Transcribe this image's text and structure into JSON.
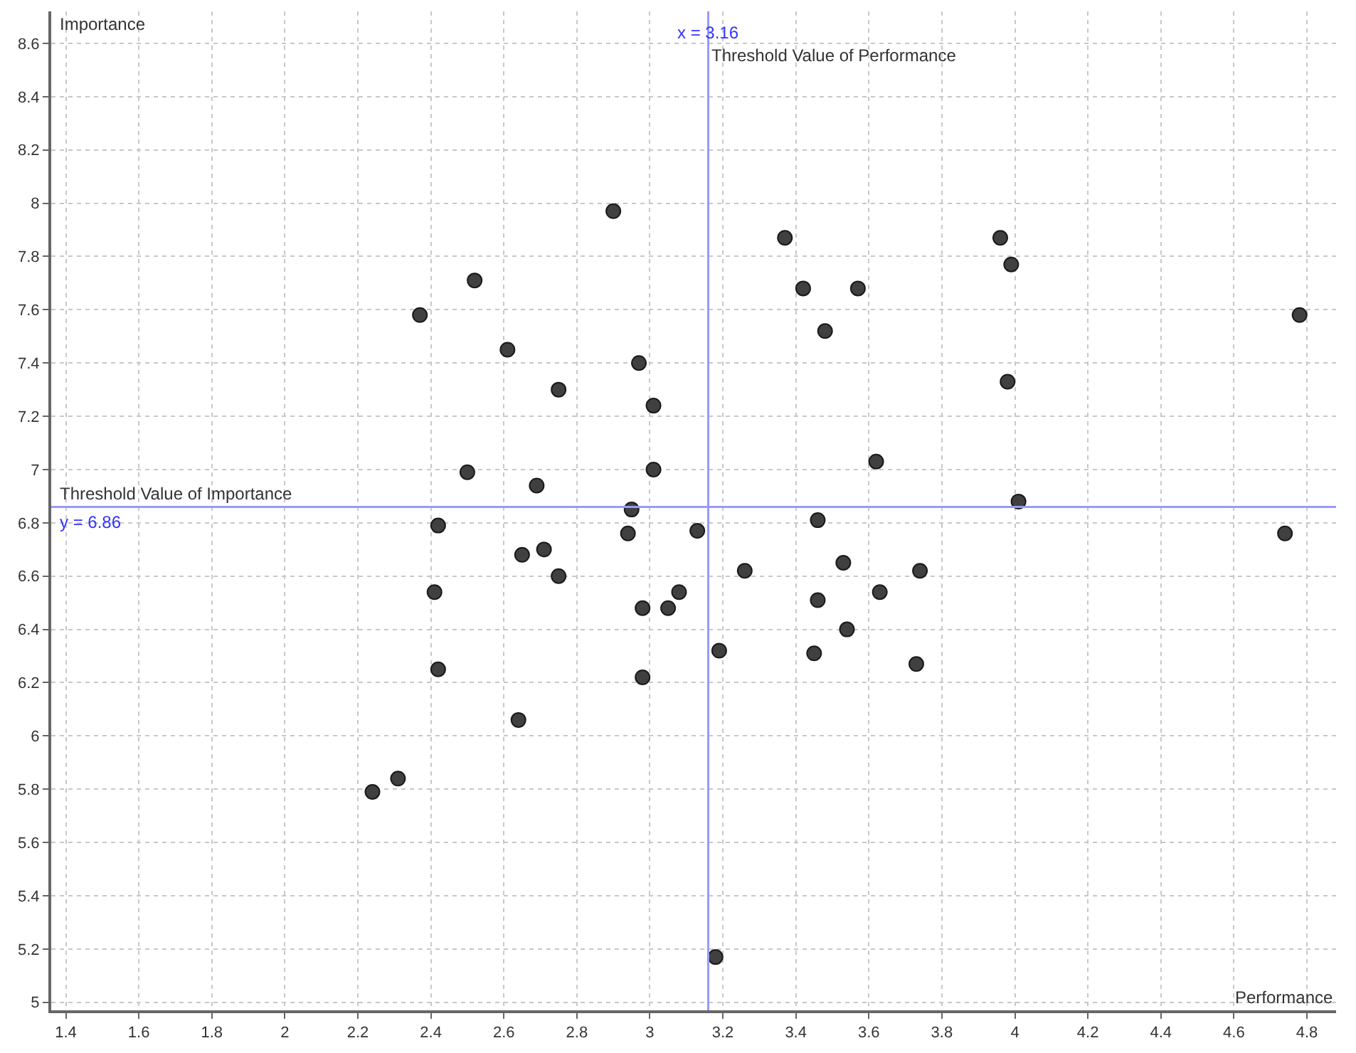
{
  "chart_data": {
    "type": "scatter",
    "xlabel": "Performance",
    "ylabel": "Importance",
    "x": [
      2.24,
      2.31,
      2.37,
      2.52,
      2.61,
      2.75,
      2.9,
      2.97,
      3.01,
      3.01,
      2.5,
      2.69,
      2.95,
      2.42,
      2.94,
      2.71,
      2.65,
      2.75,
      2.41,
      2.98,
      3.05,
      3.08,
      2.42,
      2.64,
      2.98,
      3.13,
      3.26,
      3.19,
      3.18,
      3.37,
      3.42,
      3.57,
      3.48,
      3.62,
      3.46,
      3.53,
      3.46,
      3.63,
      3.74,
      3.54,
      3.45,
      3.73,
      3.96,
      3.99,
      3.98,
      4.01,
      4.74,
      4.78
    ],
    "series": [
      {
        "color": "#404040",
        "values": [
          5.79,
          5.84,
          7.58,
          7.71,
          7.45,
          7.3,
          7.97,
          7.4,
          7.24,
          7.0,
          6.99,
          6.94,
          6.85,
          6.79,
          6.76,
          6.7,
          6.68,
          6.6,
          6.54,
          6.48,
          6.48,
          6.54,
          6.25,
          6.06,
          6.22,
          6.77,
          6.62,
          6.32,
          5.17,
          7.87,
          7.68,
          7.68,
          7.52,
          7.03,
          6.81,
          6.65,
          6.51,
          6.54,
          6.62,
          6.4,
          6.31,
          6.27,
          7.87,
          7.77,
          7.33,
          6.88,
          6.76,
          7.58
        ]
      }
    ],
    "marker": "circle",
    "xlim": [
      1.36,
      4.88
    ],
    "ylim": [
      4.97,
      8.72
    ],
    "xticks": [
      1.4,
      1.6,
      1.8,
      2,
      2.2,
      2.4,
      2.6,
      2.8,
      3,
      3.2,
      3.4,
      3.6,
      3.8,
      4,
      4.2,
      4.4,
      4.6,
      4.8
    ],
    "yticks": [
      5,
      5.2,
      5.4,
      5.6,
      5.8,
      6,
      6.2,
      6.4,
      6.6,
      6.8,
      7,
      7.2,
      7.4,
      7.6,
      7.8,
      8,
      8.2,
      8.4,
      8.6
    ],
    "grid": true,
    "ref_lines": [
      {
        "axis": "x",
        "value": 3.16,
        "label": "x = 3.16",
        "color": "#9999ff"
      },
      {
        "axis": "y",
        "value": 6.86,
        "label": "y = 6.86",
        "color": "#9999ff"
      }
    ],
    "annotations": [
      "Threshold Value of Performance",
      "Threshold Value of Importance"
    ]
  }
}
